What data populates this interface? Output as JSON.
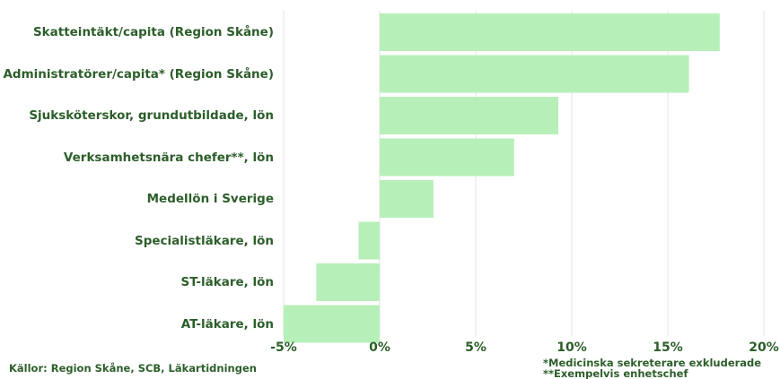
{
  "chart_data": {
    "type": "bar",
    "orientation": "horizontal",
    "categories": [
      "Skatteintäkt/capita (Region Skåne)",
      "Administratörer/capita* (Region Skåne)",
      "Sjuksköterskor, grundutbildade, lön",
      "Verksamhetsnära chefer**, lön",
      "Medellön i Sverige",
      "Specialistläkare, lön",
      "ST-läkare, lön",
      "AT-läkare, lön"
    ],
    "values": [
      17.7,
      16.1,
      9.3,
      7.0,
      2.8,
      -1.1,
      -3.3,
      -5.0
    ],
    "x_ticks": [
      "-5%",
      "0%",
      "5%",
      "10%",
      "15%",
      "20%"
    ],
    "xlim": [
      -5,
      20
    ],
    "grid": true,
    "bar_color": "#b7efb9",
    "text_color": "#2c5e2a",
    "grid_color": "#e6e6e6"
  },
  "footer": {
    "source": "Källor: Region Skåne, SCB, Läkartidningen",
    "notes": [
      "*Medicinska sekreterare exkluderade",
      "**Exempelvis enhetschef"
    ]
  }
}
